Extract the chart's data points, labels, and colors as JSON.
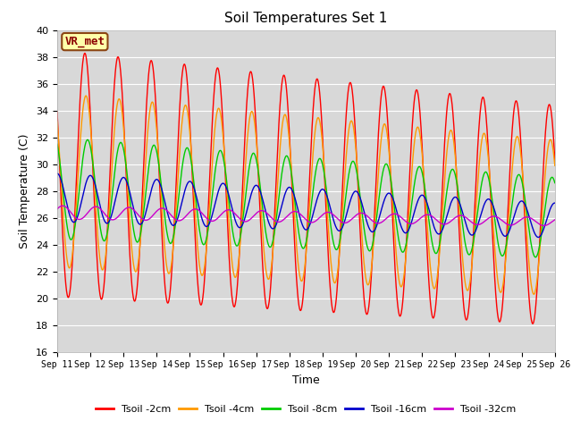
{
  "title": "Soil Temperatures Set 1",
  "xlabel": "Time",
  "ylabel": "Soil Temperature (C)",
  "ylim": [
    16,
    40
  ],
  "annotation": "VR_met",
  "bg_color": "#d8d8d8",
  "fig_bg": "#ffffff",
  "colors": [
    "#ff0000",
    "#ff9900",
    "#00cc00",
    "#0000cc",
    "#cc00cc"
  ],
  "labels": [
    "Tsoil -2cm",
    "Tsoil -4cm",
    "Tsoil -8cm",
    "Tsoil -16cm",
    "Tsoil -32cm"
  ],
  "xtick_labels": [
    "Sep 11",
    "Sep 12",
    "Sep 13",
    "Sep 14",
    "Sep 15",
    "Sep 16",
    "Sep 17",
    "Sep 18",
    "Sep 19",
    "Sep 20",
    "Sep 21",
    "Sep 22",
    "Sep 23",
    "Sep 24",
    "Sep 25",
    "Sep 26"
  ],
  "ytick_values": [
    16,
    18,
    20,
    22,
    24,
    26,
    28,
    30,
    32,
    34,
    36,
    38,
    40
  ]
}
